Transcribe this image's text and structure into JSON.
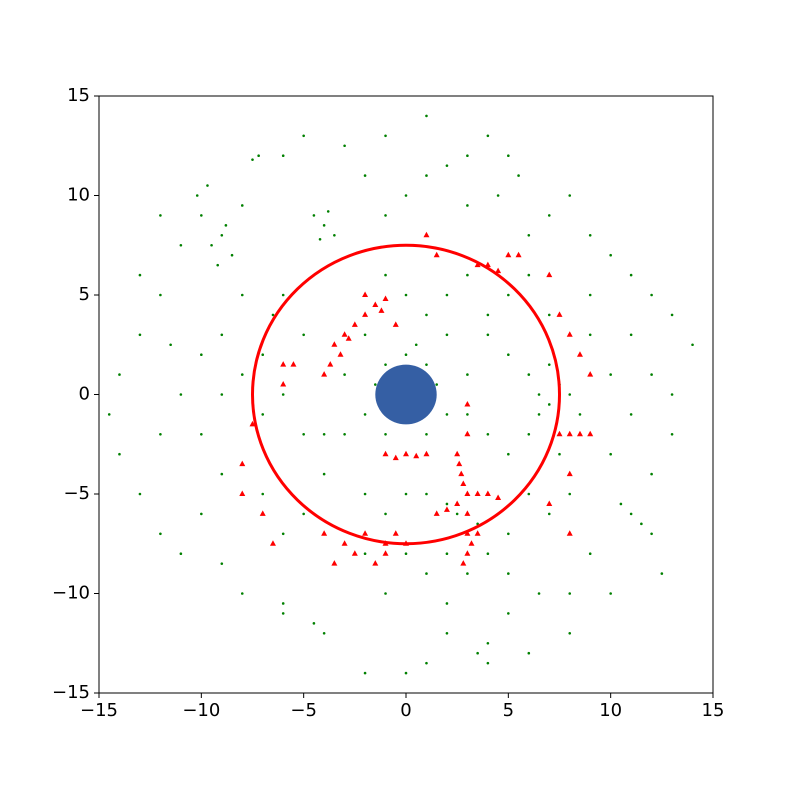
{
  "chart_data": {
    "type": "scatter",
    "xlim": [
      -15,
      15
    ],
    "ylim": [
      -15,
      15
    ],
    "xticks": [
      {
        "value": -15,
        "label": "−15"
      },
      {
        "value": -10,
        "label": "−10"
      },
      {
        "value": -5,
        "label": "−5"
      },
      0,
      5,
      10,
      15
    ],
    "yticks": [
      {
        "value": -15,
        "label": "−15"
      },
      {
        "value": -10,
        "label": "−10"
      },
      {
        "value": -5,
        "label": "−5"
      },
      0,
      5,
      10,
      15
    ],
    "grid": false,
    "series": [
      {
        "color": "#008000",
        "marker": "point",
        "x": [
          -9,
          -9.5,
          -8.5,
          -9.2,
          -8.8,
          -10,
          -9.7,
          -10.2,
          -8,
          -7.5,
          -7.2,
          -4,
          -4.5,
          -3.5,
          -4.2,
          -3.8,
          -1,
          0,
          1,
          2,
          3,
          4,
          5,
          5.5,
          4.5,
          3,
          6,
          7,
          8,
          9,
          10,
          11,
          12,
          13,
          14,
          12,
          11,
          10,
          12,
          11,
          11.5,
          10.5,
          12,
          9,
          8,
          6.5,
          5,
          4,
          4,
          3.5,
          2,
          1,
          0,
          -2,
          -4,
          -4.5,
          -6,
          -6,
          -8,
          -9,
          -11,
          -12,
          -13,
          -14,
          -14.5,
          -14,
          -13,
          -11.5,
          -12,
          -13,
          -11,
          -12,
          -6,
          -6.5,
          -5,
          -7,
          -8,
          -6,
          -7,
          -5,
          -4,
          -3,
          -4,
          -5,
          -6,
          -7,
          -9,
          -10,
          -9,
          -10,
          -2,
          -1,
          0,
          0,
          1,
          -1,
          0.5,
          -1.5,
          1.5,
          2,
          -2,
          1,
          -1,
          0,
          2,
          -2,
          3,
          -3,
          1,
          2,
          0,
          -1,
          3,
          4,
          4,
          5,
          6,
          6.5,
          7,
          7.5,
          6.5,
          7,
          8,
          8.5,
          6,
          7.5,
          8,
          8,
          7,
          3,
          2.5,
          3.5,
          2,
          4,
          1,
          5,
          2,
          3,
          4,
          1,
          -1,
          0,
          -2,
          2,
          5,
          6,
          5,
          4,
          3,
          5,
          6,
          7,
          9,
          10,
          9,
          11,
          -2,
          -3,
          -5,
          -6,
          -1,
          1,
          -8,
          -9,
          -11,
          -12,
          -10,
          13,
          13,
          12.5,
          10,
          8,
          6
        ],
        "values": [
          8,
          7.5,
          7,
          6.5,
          8.5,
          9,
          10.5,
          10,
          9.5,
          11.8,
          12,
          8.5,
          9,
          8,
          7.8,
          9.2,
          9,
          10,
          11,
          11.5,
          12,
          13,
          12,
          11,
          10,
          9.5,
          8,
          9,
          10,
          8,
          7,
          6,
          5,
          4,
          2.5,
          1,
          -1,
          -3,
          -4,
          -6,
          -6.5,
          -5.5,
          -7,
          -8,
          -10,
          -10,
          -11,
          -12.5,
          -13.5,
          -13,
          -12,
          -13.5,
          -14,
          -14,
          -12,
          -11.5,
          -10.5,
          -11,
          -10,
          -8.5,
          -8,
          -7,
          -5,
          -3,
          -1,
          1,
          3,
          2.5,
          5,
          6,
          7.5,
          9,
          5,
          4,
          3,
          2,
          1,
          0,
          -1,
          -2,
          -2,
          -2,
          -4,
          -6,
          -7,
          -5,
          -4,
          -2,
          0,
          2,
          -5,
          -6,
          -5,
          2,
          1.5,
          1.5,
          2.5,
          0.5,
          0.5,
          -1,
          -1,
          -2,
          -2,
          -3,
          3,
          3,
          1,
          1,
          4,
          5,
          5,
          6,
          6,
          4,
          3,
          2,
          1,
          0,
          -0.5,
          0.5,
          -1,
          1.5,
          0,
          -1,
          -2,
          -3,
          -4,
          -5,
          -6,
          -5,
          -6,
          -6.5,
          -5.5,
          -5,
          -5,
          -7,
          -8,
          -9,
          -8,
          -9,
          -10,
          -8,
          -8,
          -10.5,
          -9,
          -5,
          -3,
          -2,
          -1,
          5,
          6,
          4,
          3,
          1,
          5,
          3,
          11,
          12.5,
          13,
          12,
          13,
          14,
          5,
          3,
          0,
          -2,
          -6,
          -2,
          0,
          -9,
          -10,
          -12,
          -13
        ]
      },
      {
        "color": "#ff0000",
        "marker": "triangle",
        "x": [
          -3,
          -3.5,
          -2.5,
          -2,
          -1.5,
          -1,
          -3.2,
          -3.7,
          -2.8,
          -1.2,
          -4,
          -2,
          -0.5,
          -3,
          -2.5,
          -1.5,
          -1,
          -2,
          -3.5,
          -1,
          -4,
          -0.5,
          0,
          2.5,
          2.6,
          2.7,
          2.8,
          3,
          2.5,
          3,
          3.5,
          4,
          4.5,
          3,
          3.2,
          3,
          2.8,
          3.5,
          2,
          1.5,
          -1,
          -0.5,
          0,
          0.5,
          1,
          3,
          3,
          4,
          3.5,
          4.5,
          5,
          5.5,
          1,
          1.5,
          7,
          7.5,
          8,
          8.5,
          9,
          8,
          8.5,
          9,
          7.5,
          8,
          8,
          7,
          -7.5,
          -8,
          -8,
          -7,
          -6.5,
          -6,
          -5.5,
          -6
        ],
        "values": [
          3,
          2.5,
          3.5,
          4,
          4.5,
          4.8,
          2,
          1.5,
          2.8,
          4.2,
          1,
          5,
          3.5,
          -7.5,
          -8,
          -8.5,
          -7.5,
          -7,
          -8.5,
          -8,
          -7,
          -7,
          -7.5,
          -3,
          -3.5,
          -4,
          -4.5,
          -5,
          -5.5,
          -6,
          -5,
          -5,
          -5.2,
          -7,
          -7.5,
          -8,
          -8.5,
          -7,
          -5.8,
          -6,
          -3,
          -3.2,
          -3,
          -3.1,
          -3,
          -2,
          -0.5,
          6.5,
          6.5,
          6.2,
          7,
          7,
          8,
          7,
          6,
          4,
          3,
          2,
          1,
          -2,
          -2,
          -2,
          -2,
          -4,
          -7,
          -5.5,
          -1.5,
          -3.5,
          -5,
          -6,
          -7.5,
          1.5,
          1.5,
          0.5
        ]
      }
    ],
    "circles": [
      {
        "x": 0,
        "y": 0,
        "r": 7.5,
        "color": "#ff0000",
        "filled": false
      },
      {
        "x": 0,
        "y": 0,
        "r": 1.5,
        "color": "#1f4e9a",
        "filled": true
      }
    ]
  }
}
